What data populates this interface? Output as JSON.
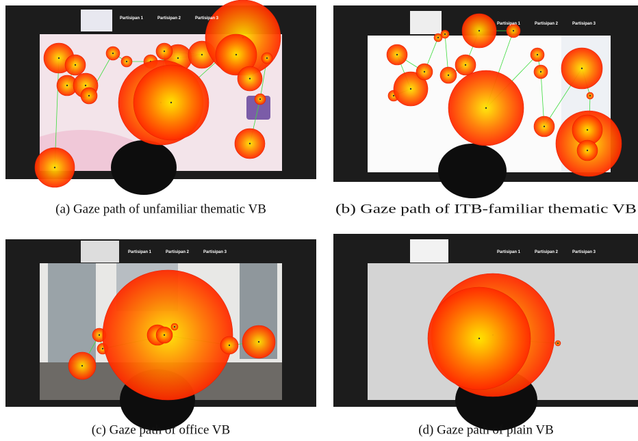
{
  "panels": [
    {
      "caption": "(a) Gaze path of unfamiliar thematic VB",
      "participants": [
        "Partisipan 1",
        "Partisipan 2",
        "Partisipan 3"
      ]
    },
    {
      "caption": "(b) Gaze path of ITB-familiar thematic VB",
      "participants": [
        "Partisipan 1",
        "Partisipan 2",
        "Partisipan 3"
      ]
    },
    {
      "caption": "(c) Gaze path of office VB",
      "participants": [
        "Partisipan 1",
        "Partisipan 2",
        "Partisipan 3"
      ]
    },
    {
      "caption": "(d) Gaze path of plain VB",
      "participants": [
        "Partisipan 1",
        "Partisipan 2",
        "Partisipan 3"
      ]
    }
  ]
}
